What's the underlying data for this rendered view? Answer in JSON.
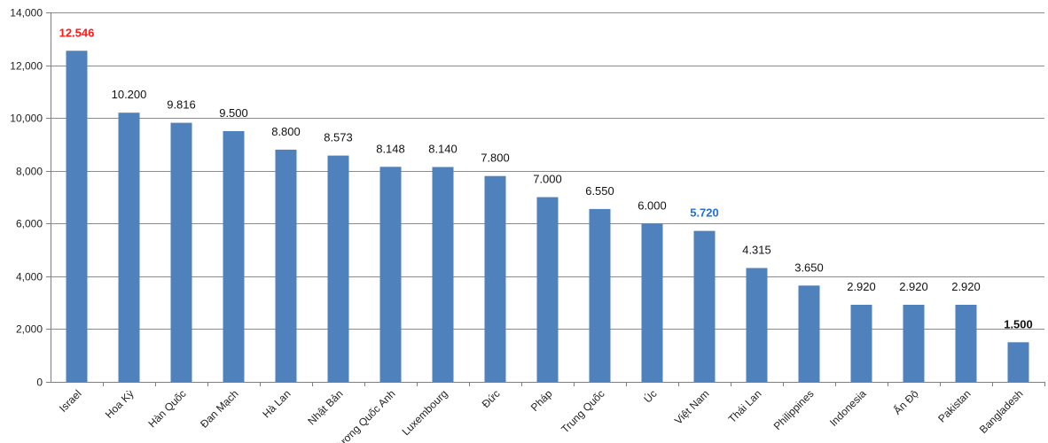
{
  "chart_data": {
    "type": "bar",
    "title": "",
    "xlabel": "",
    "ylabel": "",
    "ylim": [
      0,
      14000
    ],
    "yticks": [
      0,
      2000,
      4000,
      6000,
      8000,
      10000,
      12000,
      14000
    ],
    "ytick_labels": [
      "0",
      "2,000",
      "4,000",
      "6,000",
      "8,000",
      "10,000",
      "12,000",
      "14,000"
    ],
    "grid": true,
    "legend": "none",
    "bar_color": "#4f81bd",
    "highlight_colors": {
      "max": "#ff1a1a",
      "focus": "#1f6fe5"
    },
    "categories": [
      "Israel",
      "Hoa Kỳ",
      "Hàn Quốc",
      "Đan Mạch",
      "Hà Lan",
      "Nhật Bản",
      "Vương Quốc Anh",
      "Luxembourg",
      "Đức",
      "Pháp",
      "Trung Quốc",
      "Úc",
      "Việt Nam",
      "Thái Lan",
      "Philippines",
      "Indonesia",
      "Ấn Độ",
      "Pakistan",
      "Bangladesh"
    ],
    "values": [
      12546,
      10200,
      9816,
      9500,
      8800,
      8573,
      8148,
      8140,
      7800,
      7000,
      6550,
      6000,
      5720,
      4315,
      3650,
      2920,
      2920,
      2920,
      1500
    ],
    "value_labels": [
      "12.546",
      "10.200",
      "9.816",
      "9.500",
      "8.800",
      "8.573",
      "8.148",
      "8.140",
      "7.800",
      "7.000",
      "6.550",
      "6.000",
      "5.720",
      "4.315",
      "3.650",
      "2.920",
      "2.920",
      "2.920",
      "1.500"
    ],
    "label_styles": [
      "red",
      "",
      "",
      "",
      "",
      "",
      "",
      "",
      "",
      "",
      "",
      "",
      "blue",
      "",
      "",
      "",
      "",
      "",
      "dark"
    ]
  }
}
